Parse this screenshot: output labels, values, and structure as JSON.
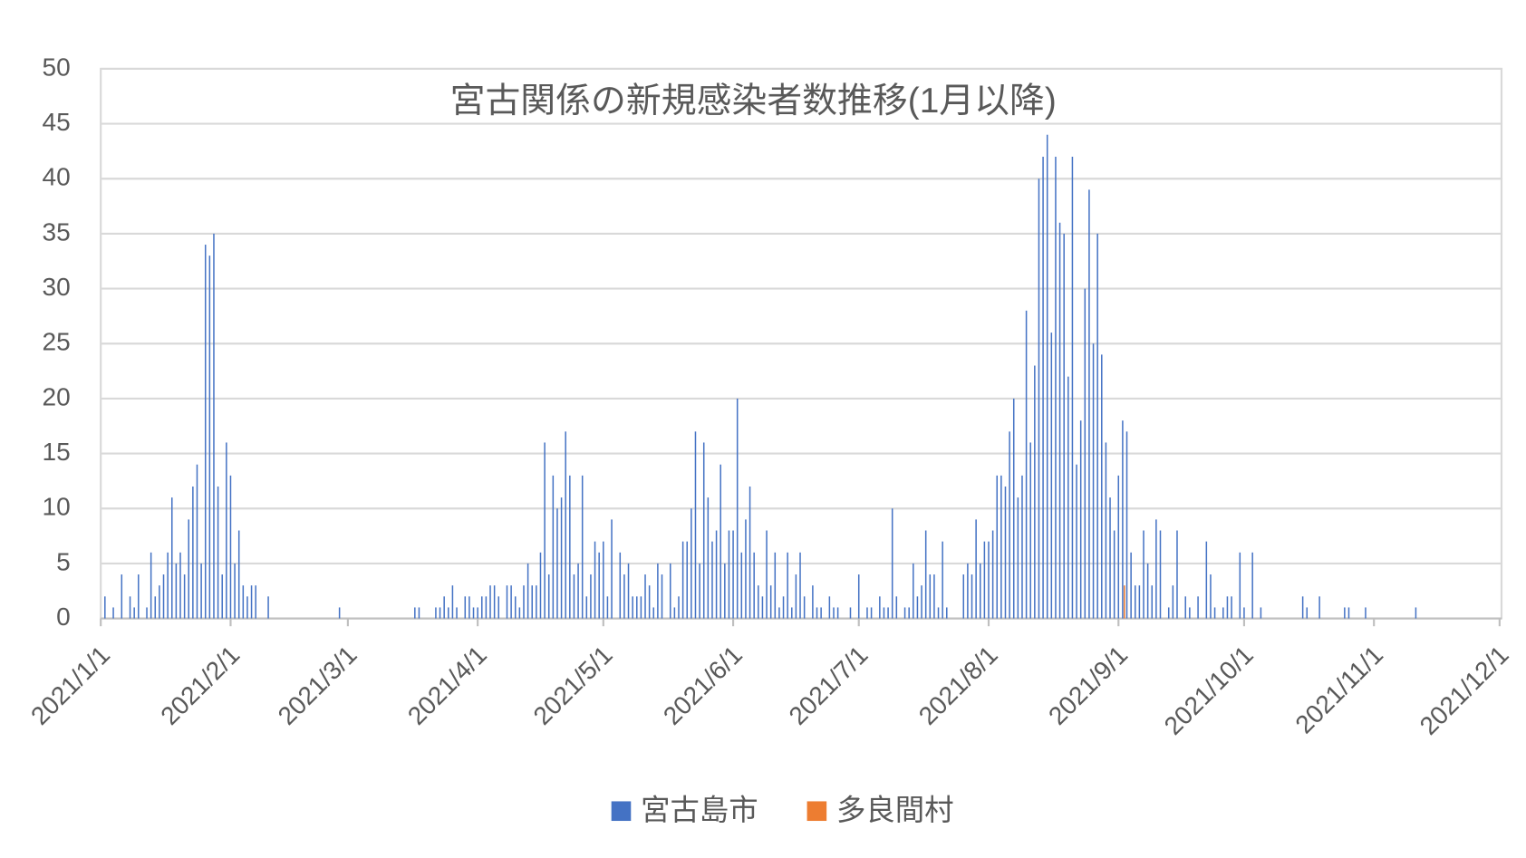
{
  "chart_data": {
    "type": "bar",
    "title": "宮古関係の新規感染者数推移(1月以降)",
    "xlim": [
      "2021/1/1",
      "2021/12/1"
    ],
    "xticks": [
      "2021/1/1",
      "2021/2/1",
      "2021/3/1",
      "2021/4/1",
      "2021/5/1",
      "2021/6/1",
      "2021/7/1",
      "2021/8/1",
      "2021/9/1",
      "2021/10/1",
      "2021/11/1",
      "2021/12/1"
    ],
    "ylim": [
      0,
      50
    ],
    "yticks": [
      0,
      5,
      10,
      15,
      20,
      25,
      30,
      35,
      40,
      45,
      50
    ],
    "grid": true,
    "legend": "bottom",
    "series": [
      {
        "name": "宮古島市",
        "color": "#4472c4",
        "x": [
          "2021/1/2",
          "2021/1/4",
          "2021/1/6",
          "2021/1/8",
          "2021/1/9",
          "2021/1/10",
          "2021/1/12",
          "2021/1/13",
          "2021/1/14",
          "2021/1/15",
          "2021/1/16",
          "2021/1/17",
          "2021/1/18",
          "2021/1/19",
          "2021/1/20",
          "2021/1/21",
          "2021/1/22",
          "2021/1/23",
          "2021/1/24",
          "2021/1/25",
          "2021/1/26",
          "2021/1/27",
          "2021/1/28",
          "2021/1/29",
          "2021/1/30",
          "2021/1/31",
          "2021/2/1",
          "2021/2/2",
          "2021/2/3",
          "2021/2/4",
          "2021/2/5",
          "2021/2/6",
          "2021/2/7",
          "2021/2/10",
          "2021/2/27",
          "2021/3/17",
          "2021/3/18",
          "2021/3/22",
          "2021/3/23",
          "2021/3/24",
          "2021/3/25",
          "2021/3/26",
          "2021/3/27",
          "2021/3/29",
          "2021/3/30",
          "2021/3/31",
          "2021/4/1",
          "2021/4/2",
          "2021/4/3",
          "2021/4/4",
          "2021/4/5",
          "2021/4/6",
          "2021/4/8",
          "2021/4/9",
          "2021/4/10",
          "2021/4/11",
          "2021/4/12",
          "2021/4/13",
          "2021/4/14",
          "2021/4/15",
          "2021/4/16",
          "2021/4/17",
          "2021/4/18",
          "2021/4/19",
          "2021/4/20",
          "2021/4/21",
          "2021/4/22",
          "2021/4/23",
          "2021/4/24",
          "2021/4/25",
          "2021/4/26",
          "2021/4/27",
          "2021/4/28",
          "2021/4/29",
          "2021/4/30",
          "2021/5/1",
          "2021/5/2",
          "2021/5/3",
          "2021/5/5",
          "2021/5/6",
          "2021/5/7",
          "2021/5/8",
          "2021/5/9",
          "2021/5/10",
          "2021/5/11",
          "2021/5/12",
          "2021/5/13",
          "2021/5/14",
          "2021/5/15",
          "2021/5/17",
          "2021/5/18",
          "2021/5/19",
          "2021/5/20",
          "2021/5/21",
          "2021/5/22",
          "2021/5/23",
          "2021/5/24",
          "2021/5/25",
          "2021/5/26",
          "2021/5/27",
          "2021/5/28",
          "2021/5/29",
          "2021/5/30",
          "2021/5/31",
          "2021/6/1",
          "2021/6/2",
          "2021/6/3",
          "2021/6/4",
          "2021/6/5",
          "2021/6/6",
          "2021/6/7",
          "2021/6/8",
          "2021/6/9",
          "2021/6/10",
          "2021/6/11",
          "2021/6/12",
          "2021/6/13",
          "2021/6/14",
          "2021/6/15",
          "2021/6/16",
          "2021/6/17",
          "2021/6/18",
          "2021/6/20",
          "2021/6/21",
          "2021/6/22",
          "2021/6/24",
          "2021/6/25",
          "2021/6/26",
          "2021/6/29",
          "2021/7/1",
          "2021/7/3",
          "2021/7/4",
          "2021/7/6",
          "2021/7/7",
          "2021/7/8",
          "2021/7/9",
          "2021/7/10",
          "2021/7/12",
          "2021/7/13",
          "2021/7/14",
          "2021/7/15",
          "2021/7/16",
          "2021/7/17",
          "2021/7/18",
          "2021/7/19",
          "2021/7/20",
          "2021/7/21",
          "2021/7/22",
          "2021/7/26",
          "2021/7/27",
          "2021/7/28",
          "2021/7/29",
          "2021/7/30",
          "2021/7/31",
          "2021/8/1",
          "2021/8/2",
          "2021/8/3",
          "2021/8/4",
          "2021/8/5",
          "2021/8/6",
          "2021/8/7",
          "2021/8/8",
          "2021/8/9",
          "2021/8/10",
          "2021/8/11",
          "2021/8/12",
          "2021/8/13",
          "2021/8/14",
          "2021/8/15",
          "2021/8/16",
          "2021/8/17",
          "2021/8/18",
          "2021/8/19",
          "2021/8/20",
          "2021/8/21",
          "2021/8/22",
          "2021/8/23",
          "2021/8/24",
          "2021/8/25",
          "2021/8/26",
          "2021/8/27",
          "2021/8/28",
          "2021/8/29",
          "2021/8/30",
          "2021/8/31",
          "2021/9/1",
          "2021/9/2",
          "2021/9/3",
          "2021/9/4",
          "2021/9/5",
          "2021/9/6",
          "2021/9/7",
          "2021/9/8",
          "2021/9/9",
          "2021/9/10",
          "2021/9/11",
          "2021/9/13",
          "2021/9/14",
          "2021/9/15",
          "2021/9/17",
          "2021/9/18",
          "2021/9/20",
          "2021/9/22",
          "2021/9/23",
          "2021/9/24",
          "2021/9/26",
          "2021/9/27",
          "2021/9/28",
          "2021/9/30",
          "2021/10/1",
          "2021/10/3",
          "2021/10/5",
          "2021/10/15",
          "2021/10/16",
          "2021/10/19",
          "2021/10/25",
          "2021/10/26",
          "2021/10/30",
          "2021/11/11"
        ],
        "values": [
          2,
          1,
          4,
          2,
          1,
          4,
          1,
          6,
          2,
          3,
          4,
          6,
          11,
          5,
          6,
          4,
          9,
          12,
          14,
          5,
          34,
          33,
          35,
          12,
          4,
          16,
          13,
          5,
          8,
          3,
          2,
          3,
          3,
          2,
          1,
          1,
          1,
          1,
          1,
          2,
          1,
          3,
          1,
          2,
          2,
          1,
          1,
          2,
          2,
          3,
          3,
          2,
          3,
          3,
          2,
          1,
          3,
          5,
          3,
          3,
          6,
          16,
          4,
          13,
          10,
          11,
          17,
          13,
          4,
          5,
          13,
          2,
          4,
          7,
          6,
          7,
          2,
          9,
          6,
          4,
          5,
          2,
          2,
          2,
          4,
          3,
          1,
          5,
          4,
          5,
          1,
          2,
          7,
          7,
          10,
          17,
          5,
          16,
          11,
          7,
          8,
          14,
          5,
          8,
          8,
          20,
          6,
          9,
          12,
          6,
          3,
          2,
          8,
          3,
          6,
          1,
          2,
          6,
          1,
          4,
          6,
          2,
          3,
          1,
          1,
          2,
          1,
          1,
          1,
          4,
          1,
          1,
          2,
          1,
          1,
          10,
          2,
          1,
          1,
          5,
          2,
          3,
          8,
          4,
          4,
          1,
          7,
          1,
          4,
          5,
          4,
          9,
          5,
          7,
          7,
          8,
          13,
          13,
          12,
          17,
          20,
          11,
          13,
          28,
          16,
          23,
          40,
          42,
          44,
          26,
          42,
          36,
          35,
          22,
          42,
          14,
          18,
          30,
          39,
          25,
          35,
          24,
          16,
          11,
          8,
          13,
          18,
          17,
          6,
          3,
          3,
          8,
          5,
          3,
          9,
          8,
          1,
          3,
          8,
          2,
          1,
          2,
          7,
          4,
          1,
          1,
          2,
          2,
          6,
          1,
          6,
          1,
          2,
          1,
          2,
          1,
          1,
          1,
          1
        ]
      },
      {
        "name": "多良間村",
        "color": "#ed7d31",
        "x": [
          "2021/9/2"
        ],
        "values": [
          3
        ]
      }
    ]
  }
}
